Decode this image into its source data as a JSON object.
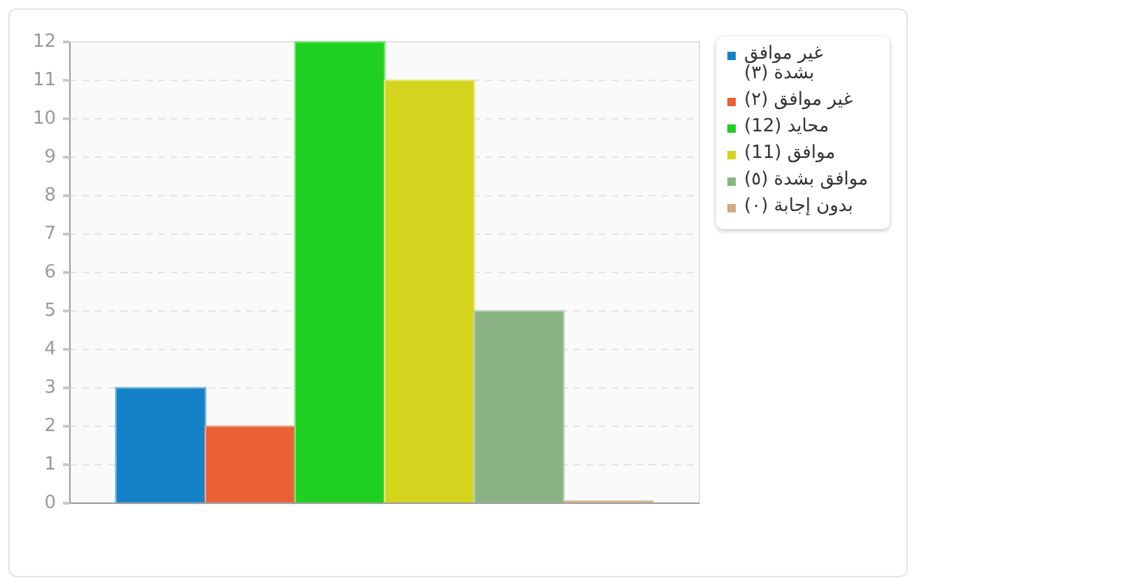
{
  "chart_data": {
    "type": "bar",
    "categories": [
      null
    ],
    "series": [
      {
        "name": "غير موافق بشدة (٣)",
        "color": "#1582c8",
        "values": [
          3
        ]
      },
      {
        "name": "غير موافق (٢)",
        "color": "#e86034",
        "values": [
          2
        ]
      },
      {
        "name": "محايد (12)",
        "color": "#20d020",
        "values": [
          12
        ]
      },
      {
        "name": "موافق (11)",
        "color": "#d4d41e",
        "values": [
          11
        ]
      },
      {
        "name": "موافق بشدة (٥)",
        "color": "#89b383",
        "values": [
          5
        ]
      },
      {
        "name": "بدون إجابة (٠)",
        "color": "#d2aa7d",
        "values": [
          0
        ]
      }
    ],
    "ylim": [
      0,
      12
    ],
    "yticks": [
      0,
      1,
      2,
      3,
      4,
      5,
      6,
      7,
      8,
      9,
      10,
      11,
      12
    ],
    "grid": "y",
    "legend": "right"
  }
}
